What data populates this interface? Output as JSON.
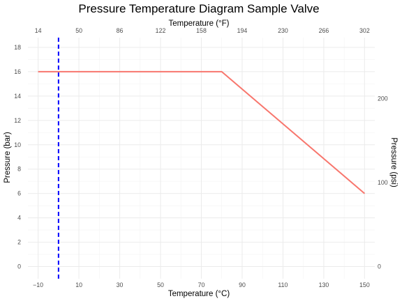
{
  "chart_data": {
    "type": "line",
    "title": "Pressure Temperature Diagram Sample Valve",
    "xlabel": "Temperature (°C)",
    "ylabel": "Pressure (bar)",
    "x2label": "Temperature (°F)",
    "y2label": "Pressure (psi)",
    "xlim": [
      -15,
      155
    ],
    "ylim": [
      -1,
      18.8
    ],
    "x_ticks": [
      -10,
      10,
      30,
      50,
      70,
      90,
      110,
      130,
      150
    ],
    "x_tick_labels": [
      "−10",
      "10",
      "30",
      "50",
      "70",
      "90",
      "110",
      "130",
      "150"
    ],
    "x_minor_ticks": [
      0,
      20,
      40,
      60,
      80,
      100,
      120,
      140
    ],
    "y_ticks": [
      0,
      2,
      4,
      6,
      8,
      10,
      12,
      14,
      16,
      18
    ],
    "y_tick_labels": [
      "0",
      "2",
      "4",
      "6",
      "8",
      "10",
      "12",
      "14",
      "16",
      "18"
    ],
    "y_minor_ticks": [
      1,
      3,
      5,
      7,
      9,
      11,
      13,
      15,
      17
    ],
    "x2_ticks": [
      14,
      50,
      86,
      122,
      158,
      194,
      230,
      266,
      302
    ],
    "x2_tick_labels": [
      "14",
      "50",
      "86",
      "122",
      "158",
      "194",
      "230",
      "266",
      "302"
    ],
    "y2_ticks": [
      0,
      100,
      200
    ],
    "y2_tick_labels": [
      "0",
      "100",
      "200"
    ],
    "grid": true,
    "series": [
      {
        "x": [
          -10,
          80,
          150
        ],
        "y": [
          16,
          16,
          6
        ],
        "color": "#f8766d",
        "style": "solid"
      }
    ],
    "reference_lines": [
      {
        "orientation": "vertical",
        "x": 0,
        "color": "#0000ff",
        "style": "dashed"
      }
    ]
  }
}
